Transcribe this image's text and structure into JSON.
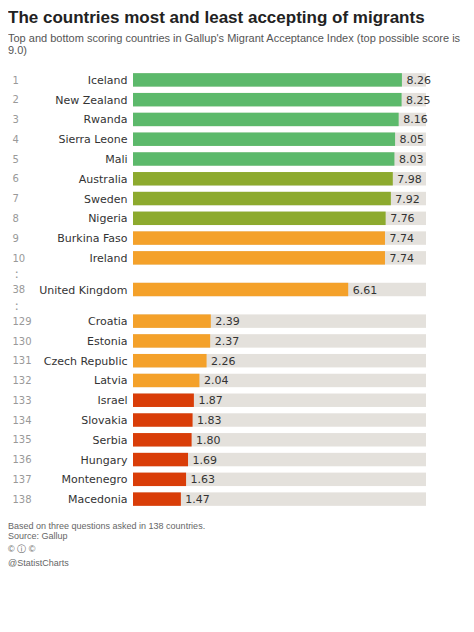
{
  "chart_data": {
    "type": "bar",
    "orientation": "horizontal",
    "title": "The countries most and least accepting of migrants",
    "subtitle": "Top and bottom scoring countries in Gallup's Migrant Acceptance Index (top possible score is 9.0)",
    "categories": [
      "Iceland",
      "New Zealand",
      "Rwanda",
      "Sierra Leone",
      "Mali",
      "Australia",
      "Sweden",
      "Nigeria",
      "Burkina Faso",
      "Ireland",
      "United Kingdom",
      "Croatia",
      "Estonia",
      "Czech Republic",
      "Latvia",
      "Israel",
      "Slovakia",
      "Serbia",
      "Hungary",
      "Montenegro",
      "Macedonia"
    ],
    "ranks": [
      "1",
      "2",
      "3",
      "4",
      "5",
      "6",
      "7",
      "8",
      "9",
      "10",
      "38",
      "129",
      "130",
      "131",
      "132",
      "133",
      "134",
      "135",
      "136",
      "137",
      "138"
    ],
    "values": [
      8.26,
      8.25,
      8.16,
      8.05,
      8.03,
      7.98,
      7.92,
      7.76,
      7.74,
      7.74,
      6.61,
      2.39,
      2.37,
      2.26,
      2.04,
      1.87,
      1.83,
      1.8,
      1.69,
      1.63,
      1.47
    ],
    "value_labels": [
      "8.26",
      "8.25",
      "8.16",
      "8.05",
      "8.03",
      "7.98",
      "7.92",
      "7.76",
      "7.74",
      "7.74",
      "6.61",
      "2.39",
      "2.37",
      "2.26",
      "2.04",
      "1.87",
      "1.83",
      "1.80",
      "1.69",
      "1.63",
      "1.47"
    ],
    "colors": [
      "#5cb96b",
      "#5cb96b",
      "#5cb96b",
      "#5cb96b",
      "#5cb96b",
      "#8daa2e",
      "#8daa2e",
      "#8daa2e",
      "#f4a12a",
      "#f4a12a",
      "#f4a12a",
      "#f4a12a",
      "#f4a12a",
      "#f4a12a",
      "#f4a12a",
      "#d93d08",
      "#d93d08",
      "#d93d08",
      "#d93d08",
      "#d93d08",
      "#d93d08"
    ],
    "xlim": [
      0,
      9.0
    ],
    "gaps_after": [
      9,
      10
    ],
    "gap_marker": ":",
    "data_labels": true,
    "tick_labels": false,
    "grid": false,
    "annotations": [
      "Based on three questions asked in 138 countries.\nSource: Gallup",
      "© ⓘ ©",
      "@StatistCharts"
    ]
  }
}
